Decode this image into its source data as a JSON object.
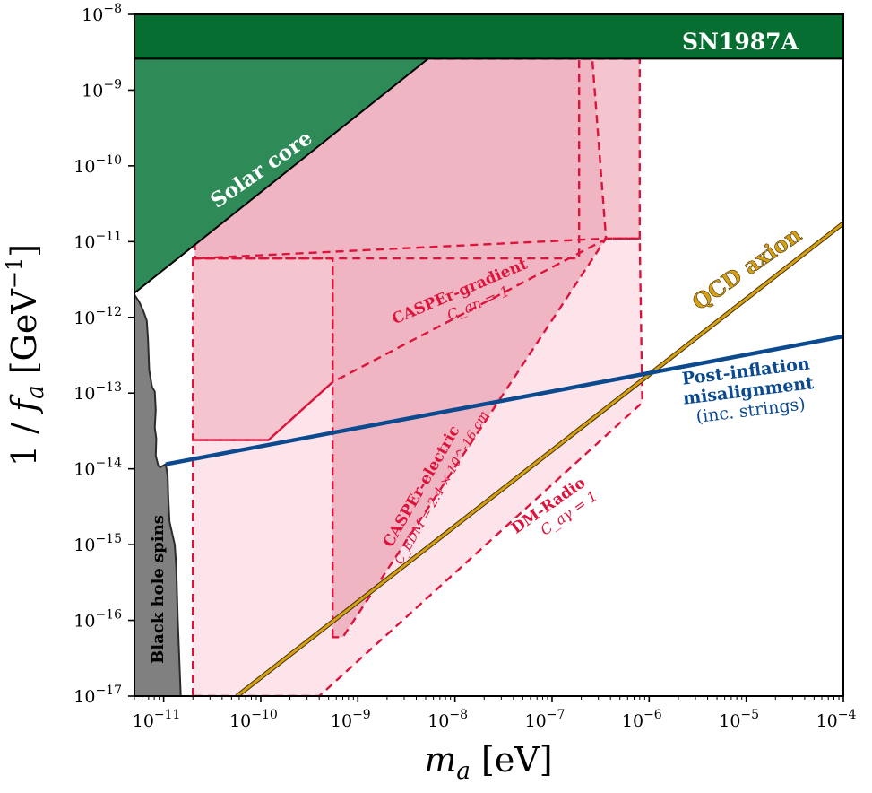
{
  "chart_data": {
    "type": "area",
    "xlabel": "m_a [eV]",
    "ylabel": "1/f_a [GeV^-1]",
    "xscale": "log",
    "yscale": "log",
    "xlim": [
      5e-12,
      0.0001
    ],
    "ylim": [
      1e-17,
      1e-08
    ],
    "x_ticks": [
      {
        "value": 1e-11,
        "label": "10^-11"
      },
      {
        "value": 1e-10,
        "label": "10^-10"
      },
      {
        "value": 1e-09,
        "label": "10^-9"
      },
      {
        "value": 1e-08,
        "label": "10^-8"
      },
      {
        "value": 1e-07,
        "label": "10^-7"
      },
      {
        "value": 1e-06,
        "label": "10^-6"
      },
      {
        "value": 1e-05,
        "label": "10^-5"
      },
      {
        "value": 0.0001,
        "label": "10^-4"
      }
    ],
    "y_ticks": [
      {
        "value": 1e-17,
        "label": "10^-17"
      },
      {
        "value": 1e-16,
        "label": "10^-16"
      },
      {
        "value": 1e-15,
        "label": "10^-15"
      },
      {
        "value": 1e-14,
        "label": "10^-14"
      },
      {
        "value": 1e-13,
        "label": "10^-13"
      },
      {
        "value": 1e-12,
        "label": "10^-12"
      },
      {
        "value": 1e-11,
        "label": "10^-11"
      },
      {
        "value": 1e-10,
        "label": "10^-10"
      },
      {
        "value": 1e-09,
        "label": "10^-9"
      },
      {
        "value": 1e-08,
        "label": "10^-8"
      }
    ],
    "regions": [
      {
        "name": "SN1987A",
        "label": "SN1987A",
        "fill": "#066e30",
        "stroke": "#000000",
        "points": [
          [
            5e-12,
            1e-08
          ],
          [
            0.0001,
            1e-08
          ],
          [
            0.0001,
            2.6e-09
          ],
          [
            5e-12,
            2.6e-09
          ]
        ]
      },
      {
        "name": "Solar core",
        "label": "Solar core",
        "fill": "#2e8a57",
        "stroke": "#000000",
        "points": [
          [
            5e-12,
            2.6e-09
          ],
          [
            5.3e-09,
            2.6e-09
          ],
          [
            5e-12,
            2.1e-12
          ]
        ]
      },
      {
        "name": "Black hole spins",
        "label": "Black hole spins",
        "fill": "#808080",
        "stroke": "#2b2b2b",
        "points": [
          [
            5e-12,
            1e-17
          ],
          [
            5e-12,
            2e-12
          ],
          [
            5.6e-12,
            1.6e-12
          ],
          [
            6.2e-12,
            1.2e-12
          ],
          [
            6.7e-12,
            9e-13
          ],
          [
            6.9e-12,
            5e-13
          ],
          [
            7.1e-12,
            2e-13
          ],
          [
            7.6e-12,
            1.2e-13
          ],
          [
            8.1e-12,
            1.05e-13
          ],
          [
            8.3e-12,
            6e-14
          ],
          [
            8.1e-12,
            3.5e-14
          ],
          [
            8.4e-12,
            2.5e-14
          ],
          [
            8.3e-12,
            1.5e-14
          ],
          [
            8.8e-12,
            1.1e-14
          ],
          [
            9.2e-12,
            1.05e-14
          ],
          [
            1.05e-11,
            1.15e-14
          ],
          [
            1.1e-11,
            8e-15
          ],
          [
            1.12e-11,
            4e-15
          ],
          [
            1.15e-11,
            2e-15
          ],
          [
            1.3e-11,
            1e-15
          ],
          [
            1.35e-11,
            5e-16
          ],
          [
            1.4e-11,
            1e-16
          ],
          [
            1.5e-11,
            1e-17
          ]
        ]
      }
    ],
    "experiments": [
      {
        "name": "DM-Radio",
        "label": "DM-Radio",
        "sublabel": "C_aγ = 1",
        "fill": "#fce4ea",
        "stroke": "#dc143c",
        "points": [
          [
            2e-11,
            1e-17
          ],
          [
            2e-11,
            2.4e-14
          ],
          [
            1.2e-10,
            2.4e-14
          ],
          [
            5.5e-10,
            1.4e-13
          ],
          [
            5.5e-10,
            6e-12
          ],
          [
            2.1e-11,
            6e-12
          ],
          [
            2.1e-11,
            6e-12
          ],
          [
            3.7e-07,
            1.1e-11
          ],
          [
            8e-07,
            1.1e-11
          ],
          [
            8.5e-07,
            7.5e-14
          ],
          [
            4e-10,
            1e-17
          ]
        ]
      },
      {
        "name": "CASPEr-gradient",
        "label": "CASPEr-gradient",
        "sublabel": "C_an = 1",
        "fill": "#f4c5cf",
        "stroke": "#dc143c",
        "points": [
          [
            2e-11,
            6e-12
          ],
          [
            2e-11,
            2.4e-14
          ],
          [
            1.2e-10,
            2.4e-14
          ],
          [
            5.5e-10,
            1.4e-13
          ],
          [
            3.7e-07,
            1.1e-11
          ],
          [
            8e-07,
            1.1e-11
          ],
          [
            8e-07,
            2.6e-09
          ],
          [
            1.9e-07,
            2.6e-09
          ],
          [
            1.9e-07,
            6e-12
          ]
        ]
      },
      {
        "name": "CASPEr-electric",
        "label": "CASPEr-electric",
        "sublabel": "C_EDM = 2.4 × 10^-16 cm",
        "fill": "#f0b5c3",
        "stroke": "#dc143c",
        "points": [
          [
            5.5e-10,
            6e-17
          ],
          [
            5.5e-10,
            6e-12
          ],
          [
            2.1e-11,
            6e-12
          ],
          [
            2.1e-11,
            2.6e-09
          ],
          [
            2.6e-07,
            2.6e-09
          ],
          [
            3.6e-07,
            1.1e-11
          ],
          [
            7e-10,
            6e-17
          ]
        ]
      }
    ],
    "lines": [
      {
        "name": "QCD axion",
        "label": "QCD axion",
        "color": "#d4a017",
        "edge_color": "#4a3200",
        "points": [
          [
            5.7e-11,
            1e-17
          ],
          [
            0.0001,
            1.75e-11
          ]
        ]
      },
      {
        "name": "Post-inflation misalignment",
        "label": "Post-inflation misalignment",
        "sublabel": "(inc. strings)",
        "color": "#0b4a8f",
        "points": [
          [
            1.05e-11,
            1.15e-14
          ],
          [
            0.0001,
            5.6e-13
          ]
        ]
      }
    ],
    "annotations": {
      "sn1987a": "SN1987A",
      "solar_core": "Solar core",
      "black_hole": "Black hole spins",
      "casper_gradient": "CASPEr-gradient",
      "casper_gradient_coupling": "C_an = 1",
      "casper_electric": "CASPEr-electric",
      "casper_electric_coupling": "C_EDM = 2.4 × 10^-16 cm",
      "dm_radio": "DM-Radio",
      "dm_radio_coupling": "C_aγ = 1",
      "qcd_axion": "QCD axion",
      "post_inflation_line1": "Post-inflation",
      "post_inflation_line2": "misalignment",
      "post_inflation_line3": "(inc. strings)"
    },
    "colors": {
      "sn1987a": "#066e30",
      "solar_core": "#2e8a57",
      "black_hole": "#808080",
      "experiment_stroke": "#dc143c",
      "qcd_axion": "#d4a017",
      "post_inflation": "#0b4a8f"
    }
  }
}
